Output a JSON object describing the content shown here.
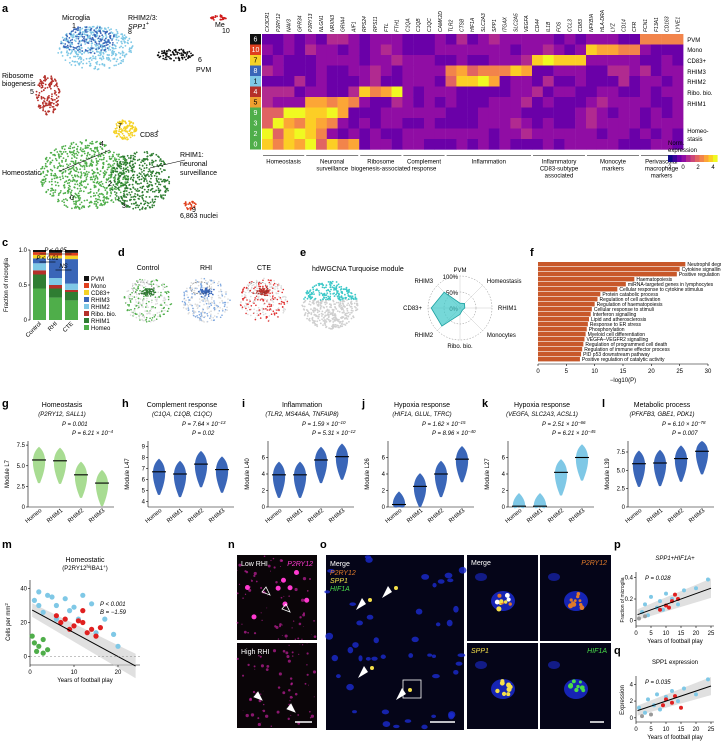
{
  "panels": [
    "a",
    "b",
    "c",
    "d",
    "e",
    "f",
    "g",
    "h",
    "i",
    "j",
    "k",
    "l",
    "m",
    "n",
    "o",
    "p",
    "q"
  ],
  "panel_a": {
    "cluster_labels": {
      "microglia": "Microglia",
      "rhim23": "RHIM2/3:",
      "spp1": "SPP1",
      "spp1_sup": "+",
      "ribo": "Ribosome",
      "ribo2": "biogenesis",
      "pvm": "PVM",
      "cd83": "CD83",
      "rhim1": "RHIM1:",
      "rhim1b": "neuronal",
      "rhim1c": "surveillance",
      "homeo": "Homeostatic",
      "me": "Me",
      "nuclei": "6,863 nuclei"
    },
    "numbers": [
      "1",
      "8",
      "6",
      "10",
      "5",
      "7",
      "0",
      "3",
      "9",
      "2",
      "4"
    ],
    "colors": {
      "homeo": "#4fae4a",
      "rhim1": "#2f7d32",
      "rhim2": "#7fc8e6",
      "rhim3": "#3a66b8",
      "ribo": "#b5302a",
      "cd83": "#f5d226",
      "mono": "#e0401e",
      "pvm": "#111111",
      "me": "#d11c1c"
    }
  },
  "panel_b": {
    "genes": [
      "CX3CR1",
      "P2RY12",
      "NAV3",
      "GPR34",
      "P2RY13",
      "NLGN1",
      "NRXN3",
      "GRIA4",
      "AIF1",
      "RPS24",
      "RPS11",
      "FTL",
      "FTH1",
      "C1QA",
      "C1QB",
      "C1QC",
      "CAMK2D",
      "TLR2",
      "CTSB",
      "HIF1A",
      "SLC2A3",
      "SPP1",
      "ITGAX",
      "SLC2A5",
      "VEGFA",
      "CD44",
      "IL1B",
      "FOS",
      "CCL3",
      "CD83",
      "NFKBIA",
      "HLA-DRA",
      "LYZ",
      "CD14",
      "CFR",
      "FCN1",
      "F13A1",
      "CD163",
      "LYVE1"
    ],
    "row_labels": [
      "PVM",
      "Mono",
      "CD83+",
      "RHIM3",
      "RHIM2",
      "Ribo. bio.",
      "RHIM1",
      "Homeo-",
      "stasis"
    ],
    "row_numbers": [
      "6",
      "10",
      "7",
      "8",
      "1",
      "4",
      "5",
      "9",
      "3",
      "2",
      "0"
    ],
    "groups": [
      "Homeostasis",
      "Neuronal surveillance",
      "Ribosome biogenesis-associated",
      "Complement response",
      "Inflammation",
      "Inflammatory CD83-subtype associated",
      "Monocyte markers",
      "Perivascular macrophage markers"
    ],
    "legend_title": "Norm. expression",
    "legend_ticks": [
      "−2",
      "0",
      "2",
      "4"
    ]
  },
  "panel_c": {
    "chart_data": {
      "type": "bar",
      "categories": [
        "Control",
        "RHI",
        "CTE"
      ],
      "ylabel": "Fraction of microglia",
      "ylim": [
        0,
        1
      ],
      "yticks": [
        "0",
        "0.5",
        "1.0"
      ],
      "series": [
        {
          "name": "Homeo",
          "color": "#4fae4a",
          "values": [
            0.45,
            0.32,
            0.28
          ]
        },
        {
          "name": "RHIM1",
          "color": "#2f7d32",
          "values": [
            0.2,
            0.13,
            0.12
          ]
        },
        {
          "name": "Ribo. bio.",
          "color": "#b5302a",
          "values": [
            0.06,
            0.05,
            0.03
          ]
        },
        {
          "name": "RHIM2",
          "color": "#7fc8e6",
          "values": [
            0.1,
            0.1,
            0.09
          ]
        },
        {
          "name": "RHIM3",
          "color": "#3a66b8",
          "values": [
            0.07,
            0.28,
            0.35
          ]
        },
        {
          "name": "CD83+",
          "color": "#f5d226",
          "values": [
            0.05,
            0.04,
            0.05
          ]
        },
        {
          "name": "Mono",
          "color": "#e0401e",
          "values": [
            0.04,
            0.04,
            0.04
          ]
        },
        {
          "name": "PVM",
          "color": "#111111",
          "values": [
            0.03,
            0.04,
            0.04
          ]
        }
      ],
      "sig": [
        "P < 0.05",
        "P < 0.01",
        "NS"
      ]
    }
  },
  "panel_d": {
    "titles": [
      "Control",
      "RHI",
      "CTE"
    ]
  },
  "panel_e": {
    "title": "hdWGCNA Turquoise module",
    "radar_labels": [
      "PVM",
      "Homeostasis",
      "RHIM1",
      "Monocytes",
      "Ribo. bio.",
      "RHIM2",
      "CD83+",
      "RHIM3"
    ],
    "rings": [
      "100%",
      "50%",
      "0%"
    ]
  },
  "panel_f": {
    "chart_data": {
      "type": "bar",
      "xlabel": "−log10(P)",
      "xticks": [
        "0",
        "5",
        "10",
        "15",
        "20",
        "25",
        "30"
      ],
      "xlim": [
        0,
        30
      ],
      "categories": [
        "Neutrophil degranulation",
        "Cytokine signalling in immune system",
        "Positive regulation of immune response",
        "Haematopoiesis",
        "miRNA-targeted genes in lymphocytes",
        "Cellular response to cytokine stimulus",
        "Protein catabolic process",
        "Regulation of cell activation",
        "Regulation of haematopoiesis",
        "Cellular response to stimuli",
        "Interferon signalling",
        "Lipid and atherosclerosis",
        "Response to ER stress",
        "Phosphorylation",
        "Myeloid cell differentiation",
        "VEGFA–VEGFR2 signalling",
        "Regulation of programmed cell death",
        "Regulation of immune effector process",
        "PID p53 downstream pathway",
        "Positive regulation of catalytic activity"
      ],
      "values": [
        26,
        25,
        24.5,
        17,
        15.5,
        14,
        11,
        10.5,
        10,
        9.5,
        9.3,
        9,
        8.8,
        8.6,
        8.4,
        8.2,
        8,
        7.8,
        7.6,
        7.4
      ],
      "color": "#c8582a"
    }
  },
  "violins": [
    {
      "id": "g",
      "title": "Homeostasis",
      "genes": "(P2RY12, SALL1)",
      "ylabel": "Module L7",
      "color": "#a8dc92",
      "p1": "P = 0.001",
      "p2": "P = 6.21 × 10",
      "p2exp": "−4",
      "yticks": [
        "0",
        "2.5",
        "5.0",
        "7.5"
      ],
      "medians": [
        5.7,
        5.6,
        3.9,
        2.9
      ],
      "ymax": 8
    },
    {
      "id": "h",
      "title": "Complement response",
      "genes": "(C1QA, C1QB, C1QC)",
      "ylabel": "Module L47",
      "color": "#3a66b8",
      "p1": "P = 7.64 × 10",
      "p1exp": "−13",
      "p2": "P = 0.02",
      "yticks": [
        "4",
        "5",
        "6",
        "7",
        "8",
        "9"
      ],
      "medians": [
        6.7,
        6.5,
        7.4,
        6.9
      ],
      "ymin": 3.5,
      "ymax": 9.5
    },
    {
      "id": "i",
      "title": "Inflammation",
      "genes": "(TLR2, MS4A6A, TNFAIP8)",
      "ylabel": "Module L40",
      "color": "#3a66b8",
      "p1": "P = 1.59 × 10",
      "p1exp": "−10",
      "p2": "P = 5.31 × 10",
      "p2exp": "−12",
      "yticks": [
        "0",
        "2",
        "4",
        "6"
      ],
      "medians": [
        3.9,
        3.9,
        5.7,
        6.1
      ],
      "ymax": 8
    },
    {
      "id": "j",
      "title": "Hypoxia response",
      "genes": "(HIF1A, GLUL, TFRC)",
      "ylabel": "Module L26",
      "color": "#3a66b8",
      "p1": "P = 1.62 × 10",
      "p1exp": "−15",
      "p2": "P = 8.96 × 10",
      "p2exp": "−40",
      "yticks": [
        "0",
        "2",
        "4",
        "6"
      ],
      "medians": [
        0.3,
        2.5,
        4.0,
        5.8
      ],
      "ymax": 8
    },
    {
      "id": "k",
      "title": "Hypoxia response",
      "genes": "(VEGFA, SLC2A3, ACSL1)",
      "ylabel": "Module L27",
      "color": "#7fc8e6",
      "p1": "P = 2.51 × 10",
      "p1exp": "−66",
      "p2": "P = 6.21 × 10",
      "p2exp": "−45",
      "yticks": [
        "0",
        "2",
        "4",
        "6"
      ],
      "medians": [
        0.1,
        0.1,
        4.2,
        6.0
      ],
      "ymax": 8
    },
    {
      "id": "l",
      "title": "Metabolic process",
      "genes": "(PFKFB3, GBE1, PDK1)",
      "ylabel": "Module L39",
      "color": "#3a66b8",
      "p1": "P = 6.10 × 10",
      "p1exp": "−78",
      "p2": "P = 0.007",
      "yticks": [
        "0",
        "2.5",
        "5.0",
        "7.5"
      ],
      "medians": [
        5.9,
        6.0,
        6.6,
        7.6
      ],
      "ymax": 9
    }
  ],
  "violin_categories": [
    "Homeo",
    "RHIM1",
    "RHIM2",
    "RHIM3"
  ],
  "panel_m": {
    "title": "Homeostatic",
    "subtitle": "(P2RY12",
    "sub_hi": "hi",
    "sub_end": "IBA1",
    "sub_plus": "+",
    "sub_close": ")",
    "ylabel": "Cells per mm",
    "ylabel_sup": "2",
    "xlabel": "Years of football play",
    "p": "P < 0.001",
    "b": "B = −1.59",
    "yticks": [
      "0",
      "20",
      "40"
    ],
    "xticks": [
      "0",
      "10",
      "20"
    ],
    "chart_data": {
      "type": "scatter",
      "series": [
        {
          "name": "blue",
          "color": "#7fc8e6",
          "points": [
            [
              1,
              33
            ],
            [
              2,
              38
            ],
            [
              3,
              26
            ],
            [
              4,
              36
            ],
            [
              5,
              35
            ],
            [
              6,
              30
            ],
            [
              8,
              34
            ],
            [
              9,
              27
            ],
            [
              10,
              29
            ],
            [
              12,
              36
            ],
            [
              14,
              31
            ],
            [
              15,
              14
            ],
            [
              17,
              22
            ],
            [
              19,
              13
            ],
            [
              20,
              6
            ],
            [
              2,
              30
            ],
            [
              6,
              22
            ],
            [
              11,
              22
            ]
          ]
        },
        {
          "name": "red",
          "color": "#e02020",
          "points": [
            [
              6,
              24
            ],
            [
              7,
              20
            ],
            [
              8,
              22
            ],
            [
              10,
              18
            ],
            [
              11,
              21
            ],
            [
              12,
              20
            ],
            [
              13,
              14
            ],
            [
              14,
              16
            ],
            [
              15,
              12
            ],
            [
              16,
              17
            ],
            [
              12,
              27
            ],
            [
              9,
              16
            ]
          ]
        },
        {
          "name": "green",
          "color": "#4fae4a",
          "points": [
            [
              0.5,
              12
            ],
            [
              1,
              8
            ],
            [
              2,
              6
            ],
            [
              3,
              10
            ],
            [
              4,
              4
            ],
            [
              1.5,
              3
            ],
            [
              3,
              2
            ]
          ]
        }
      ],
      "xlim": [
        0,
        25
      ],
      "ylim": [
        -5,
        45
      ]
    }
  },
  "panel_n": {
    "top": "Low RHI",
    "bottom": "High RHI",
    "channel": "P2RY12"
  },
  "panel_o": {
    "merge": "Merge",
    "channels": [
      "P2RY12",
      "SPP1",
      "HIF1A"
    ],
    "channel_colors": [
      "#e07a2a",
      "#f5e04a",
      "#4adc4a"
    ],
    "zoom_merge": "Merge",
    "zoom_labels": [
      "P2RY12",
      "SPP1",
      "HIF1A"
    ]
  },
  "panel_p": {
    "title": "SPP1+HIF1A+",
    "p": "P = 0.028",
    "ylabel": "Fraction of microglia",
    "xlabel": "Years of football play",
    "yticks": [
      "0",
      "0.2",
      "0.4"
    ],
    "xticks": [
      "0",
      "5",
      "10",
      "15",
      "20",
      "25"
    ],
    "chart_data": {
      "type": "scatter",
      "series": [
        {
          "name": "blue",
          "color": "#7fc8e6",
          "points": [
            [
              2,
              0.08
            ],
            [
              3,
              0.15
            ],
            [
              4,
              0.05
            ],
            [
              5,
              0.22
            ],
            [
              7,
              0.12
            ],
            [
              8,
              0.18
            ],
            [
              9,
              0.1
            ],
            [
              10,
              0.25
            ],
            [
              12,
              0.2
            ],
            [
              14,
              0.15
            ],
            [
              16,
              0.28
            ],
            [
              20,
              0.3
            ],
            [
              24,
              0.38
            ]
          ]
        },
        {
          "name": "red",
          "color": "#e02020",
          "points": [
            [
              8,
              0.1
            ],
            [
              10,
              0.14
            ],
            [
              12,
              0.18
            ],
            [
              13,
              0.24
            ],
            [
              14,
              0.2
            ],
            [
              11,
              0.12
            ]
          ]
        },
        {
          "name": "grey",
          "color": "#999999",
          "points": [
            [
              1,
              0.02
            ],
            [
              3,
              0.04
            ]
          ]
        }
      ],
      "xlim": [
        0,
        26
      ],
      "ylim": [
        -0.05,
        0.45
      ]
    }
  },
  "panel_q": {
    "title": "SPP1 expression",
    "p": "P = 0.035",
    "ylabel": "Expression",
    "xlabel": "Years of football play",
    "yticks": [
      "0",
      "2",
      "4"
    ],
    "xticks": [
      "0",
      "5",
      "10",
      "15",
      "20",
      "25"
    ],
    "chart_data": {
      "type": "scatter",
      "series": [
        {
          "name": "blue",
          "color": "#7fc8e6",
          "points": [
            [
              1,
              1.2
            ],
            [
              3,
              0.6
            ],
            [
              4,
              2.2
            ],
            [
              6,
              1.5
            ],
            [
              7,
              2.8
            ],
            [
              8,
              1.0
            ],
            [
              10,
              2.5
            ],
            [
              12,
              3.2
            ],
            [
              14,
              2.0
            ],
            [
              16,
              3.5
            ],
            [
              20,
              2.8
            ],
            [
              24,
              4.6
            ]
          ]
        },
        {
          "name": "red",
          "color": "#e02020",
          "points": [
            [
              9,
              1.5
            ],
            [
              10,
              2.2
            ],
            [
              12,
              1.8
            ],
            [
              13,
              2.6
            ],
            [
              15,
              1.2
            ]
          ]
        },
        {
          "name": "grey",
          "color": "#999999",
          "points": [
            [
              2,
              0.2
            ],
            [
              5,
              0.4
            ]
          ]
        }
      ],
      "xlim": [
        0,
        26
      ],
      "ylim": [
        -0.5,
        5
      ]
    }
  }
}
